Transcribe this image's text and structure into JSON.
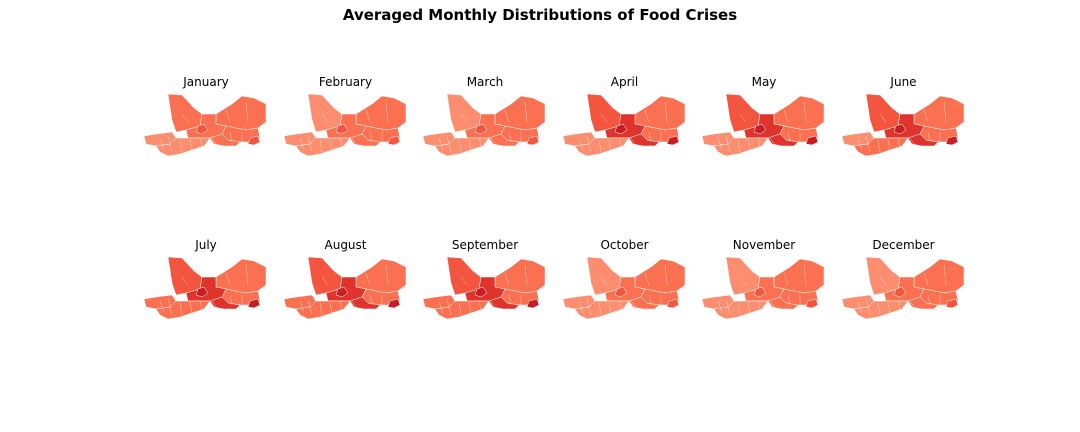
{
  "figure": {
    "title": "Averaged Monthly Distributions of Food Crises"
  },
  "palette": {
    "low": "#fca487",
    "mid_low": "#fc8d6e",
    "mid": "#fb7050",
    "mid_high": "#f4553e",
    "high": "#e0332b",
    "very_high": "#c81d22",
    "border": "#ffffff"
  },
  "panels": [
    {
      "month": "January",
      "intensity": {
        "west": 0.18,
        "north": 0.3,
        "center": 0.38,
        "east": 0.45,
        "south": 0.2,
        "hotspot": 0.5
      }
    },
    {
      "month": "February",
      "intensity": {
        "west": 0.15,
        "north": 0.22,
        "center": 0.32,
        "east": 0.42,
        "south": 0.18,
        "hotspot": 0.65
      }
    },
    {
      "month": "March",
      "intensity": {
        "west": 0.15,
        "north": 0.2,
        "center": 0.3,
        "east": 0.4,
        "south": 0.18,
        "hotspot": 0.6
      }
    },
    {
      "month": "April",
      "intensity": {
        "west": 0.22,
        "north": 0.68,
        "center": 0.78,
        "east": 0.42,
        "south": 0.25,
        "hotspot": 0.9
      }
    },
    {
      "month": "May",
      "intensity": {
        "west": 0.22,
        "north": 0.62,
        "center": 0.8,
        "east": 0.4,
        "south": 0.25,
        "hotspot": 0.92
      }
    },
    {
      "month": "June",
      "intensity": {
        "west": 0.25,
        "north": 0.6,
        "center": 0.88,
        "east": 0.4,
        "south": 0.3,
        "hotspot": 0.95
      }
    },
    {
      "month": "July",
      "intensity": {
        "west": 0.3,
        "north": 0.55,
        "center": 0.82,
        "east": 0.4,
        "south": 0.3,
        "hotspot": 0.92
      }
    },
    {
      "month": "August",
      "intensity": {
        "west": 0.32,
        "north": 0.55,
        "center": 0.82,
        "east": 0.4,
        "south": 0.3,
        "hotspot": 0.9
      }
    },
    {
      "month": "September",
      "intensity": {
        "west": 0.32,
        "north": 0.55,
        "center": 0.8,
        "east": 0.4,
        "south": 0.3,
        "hotspot": 0.9
      }
    },
    {
      "month": "October",
      "intensity": {
        "west": 0.18,
        "north": 0.22,
        "center": 0.32,
        "east": 0.38,
        "south": 0.22,
        "hotspot": 0.55
      }
    },
    {
      "month": "November",
      "intensity": {
        "west": 0.18,
        "north": 0.2,
        "center": 0.3,
        "east": 0.36,
        "south": 0.2,
        "hotspot": 0.55
      }
    },
    {
      "month": "December",
      "intensity": {
        "west": 0.16,
        "north": 0.2,
        "center": 0.3,
        "east": 0.36,
        "south": 0.2,
        "hotspot": 0.55
      }
    }
  ]
}
